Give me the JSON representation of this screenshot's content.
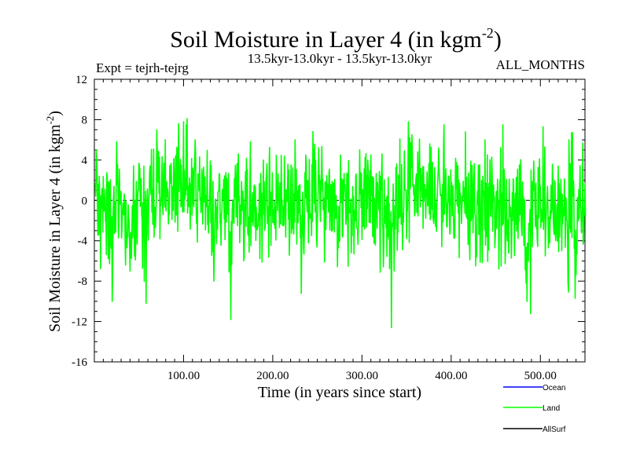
{
  "chart_data": {
    "type": "line",
    "title": "Soil Moisture in Layer 4 (in kgm",
    "title_sup": "-2",
    "title_close": ")",
    "subtitle_left": "Expt = tejrh-tejrg",
    "subtitle_center": "13.5kyr-13.0kyr - 13.5kyr-13.0kyr",
    "subtitle_right": "ALL_MONTHS",
    "xlabel": "Time (in years since start)",
    "ylabel": "Soil Moisture in Layer 4 (in kgm",
    "ylabel_sup": "-2",
    "ylabel_close": ")",
    "xlim": [
      0,
      550
    ],
    "ylim": [
      -16,
      12
    ],
    "x_ticks": [
      100,
      200,
      300,
      400,
      500
    ],
    "x_tick_labels": [
      "100.00",
      "200.00",
      "300.00",
      "400.00",
      "500.00"
    ],
    "y_ticks": [
      -16,
      -12,
      -8,
      -4,
      0,
      4,
      8,
      12
    ],
    "y_tick_labels": [
      "-16",
      "-12",
      "-8",
      "-4",
      "0",
      "4",
      "8",
      "12"
    ],
    "zero_line": true,
    "grid": false,
    "legend_position": "bottom-right",
    "series": [
      {
        "name": "Ocean",
        "color": "#0000ff",
        "values": []
      },
      {
        "name": "Land",
        "color": "#00ff00",
        "x_start": 1,
        "x_step": 0.5,
        "count": 1100,
        "min": -12.6,
        "max": 8.1,
        "anchors": [
          [
            1,
            -2.5
          ],
          [
            2,
            5.0
          ],
          [
            5,
            -4.5
          ],
          [
            9,
            -1.0
          ],
          [
            12,
            -6.0
          ],
          [
            16,
            -3.0
          ],
          [
            20,
            -10.0
          ],
          [
            23,
            -4.0
          ],
          [
            27,
            -2.0
          ],
          [
            31,
            -3.5
          ],
          [
            35,
            -6.0
          ],
          [
            40,
            -7.0
          ],
          [
            45,
            -2.0
          ],
          [
            50,
            -3.0
          ],
          [
            55,
            -1.5
          ],
          [
            58,
            -10.2
          ],
          [
            62,
            1.0
          ],
          [
            66,
            0.5
          ],
          [
            70,
            3.0
          ],
          [
            75,
            2.0
          ],
          [
            80,
            0.0
          ],
          [
            85,
            1.5
          ],
          [
            90,
            4.0
          ],
          [
            95,
            3.0
          ],
          [
            100,
            2.0
          ],
          [
            103,
            7.5
          ],
          [
            106,
            5.5
          ],
          [
            110,
            1.0
          ],
          [
            115,
            -2.0
          ],
          [
            120,
            -1.0
          ],
          [
            125,
            -2.5
          ],
          [
            130,
            -3.0
          ],
          [
            134,
            -8.0
          ],
          [
            138,
            -2.0
          ],
          [
            142,
            -1.0
          ],
          [
            146,
            -3.0
          ],
          [
            150,
            -3.5
          ],
          [
            153,
            -11.8
          ],
          [
            157,
            -1.0
          ],
          [
            162,
            -2.0
          ],
          [
            167,
            0.0
          ],
          [
            172,
            -1.5
          ],
          [
            177,
            -4.0
          ],
          [
            182,
            -3.0
          ],
          [
            187,
            -1.0
          ],
          [
            192,
            0.5
          ],
          [
            197,
            1.0
          ],
          [
            202,
            0.0
          ],
          [
            207,
            -1.0
          ],
          [
            212,
            -2.0
          ],
          [
            217,
            -2.0
          ],
          [
            222,
            -1.5
          ],
          [
            227,
            -3.0
          ],
          [
            232,
            -9.2
          ],
          [
            236,
            -2.0
          ],
          [
            240,
            0.0
          ],
          [
            245,
            1.0
          ],
          [
            250,
            0.5
          ],
          [
            255,
            1.0
          ],
          [
            260,
            0.0
          ],
          [
            265,
            -2.0
          ],
          [
            270,
            -3.0
          ],
          [
            275,
            -4.0
          ],
          [
            280,
            -2.0
          ],
          [
            285,
            -3.0
          ],
          [
            290,
            -2.5
          ],
          [
            295,
            -3.0
          ],
          [
            300,
            -2.0
          ],
          [
            305,
            -1.5
          ],
          [
            310,
            -3.0
          ],
          [
            315,
            -1.0
          ],
          [
            320,
            -2.0
          ],
          [
            325,
            -4.0
          ],
          [
            330,
            -6.0
          ],
          [
            333,
            -12.6
          ],
          [
            336,
            -7.0
          ],
          [
            340,
            -2.0
          ],
          [
            345,
            1.0
          ],
          [
            350,
            3.0
          ],
          [
            355,
            2.0
          ],
          [
            360,
            1.5
          ],
          [
            365,
            2.0
          ],
          [
            370,
            0.0
          ],
          [
            375,
            1.0
          ],
          [
            380,
            2.0
          ],
          [
            385,
            1.0
          ],
          [
            390,
            0.5
          ],
          [
            395,
            0.0
          ],
          [
            400,
            1.5
          ],
          [
            405,
            0.5
          ],
          [
            410,
            -1.0
          ],
          [
            415,
            -0.5
          ],
          [
            420,
            -1.0
          ],
          [
            425,
            -2.0
          ],
          [
            430,
            -3.0
          ],
          [
            435,
            -3.5
          ],
          [
            440,
            -2.5
          ],
          [
            445,
            -2.0
          ],
          [
            450,
            -1.0
          ],
          [
            455,
            -2.0
          ],
          [
            460,
            -3.0
          ],
          [
            465,
            -5.0
          ],
          [
            470,
            -4.0
          ],
          [
            475,
            -6.0
          ],
          [
            480,
            -5.0
          ],
          [
            485,
            -10.0
          ],
          [
            489,
            -11.2
          ],
          [
            493,
            -4.0
          ],
          [
            497,
            -2.0
          ],
          [
            502,
            0.0
          ],
          [
            507,
            -1.0
          ],
          [
            512,
            -2.0
          ],
          [
            517,
            -2.5
          ],
          [
            522,
            -3.5
          ],
          [
            527,
            -5.0
          ],
          [
            531,
            -8.0
          ],
          [
            535,
            6.7
          ],
          [
            539,
            -9.7
          ],
          [
            543,
            -2.0
          ],
          [
            547,
            -4.5
          ],
          [
            550,
            -1.5
          ]
        ],
        "spikes": [
          [
            2,
            5.0
          ],
          [
            25,
            5.8
          ],
          [
            70,
            7.0
          ],
          [
            100,
            7.8
          ],
          [
            104,
            8.1
          ],
          [
            113,
            6.0
          ],
          [
            175,
            5.8
          ],
          [
            225,
            6.0
          ],
          [
            237,
            4.5
          ],
          [
            276,
            4.5
          ],
          [
            310,
            4.5
          ],
          [
            352,
            7.8
          ],
          [
            356,
            6.5
          ],
          [
            392,
            7.5
          ],
          [
            416,
            6.8
          ],
          [
            438,
            6.0
          ],
          [
            458,
            7.5
          ],
          [
            503,
            7.3
          ],
          [
            532,
            6.0
          ],
          [
            536,
            6.7
          ]
        ]
      },
      {
        "name": "AllSurf",
        "color": "#000000",
        "values": []
      }
    ]
  }
}
